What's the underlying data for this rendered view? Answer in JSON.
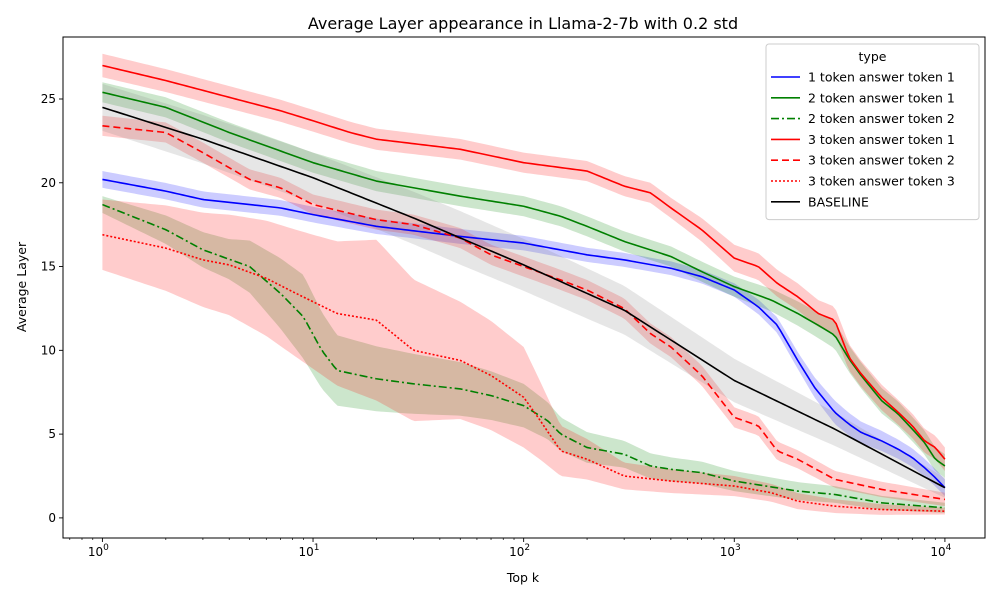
{
  "chart_data": {
    "type": "line",
    "title": "Average Layer appearance in Llama-2-7b with 0.2 std",
    "xlabel": "Top k",
    "ylabel": "Average Layer",
    "xscale": "log",
    "xlim": [
      0.65,
      15500
    ],
    "ylim": [
      -1.2,
      28.7
    ],
    "x_ticks": [
      {
        "value": 1,
        "base": "10",
        "exp": "0"
      },
      {
        "value": 10,
        "base": "10",
        "exp": "1"
      },
      {
        "value": 100,
        "base": "10",
        "exp": "2"
      },
      {
        "value": 1000,
        "base": "10",
        "exp": "3"
      },
      {
        "value": 10000,
        "base": "10",
        "exp": "4"
      }
    ],
    "y_ticks": [
      0,
      5,
      10,
      15,
      20,
      25
    ],
    "legend": {
      "title": "type",
      "position": "top-right"
    },
    "series": [
      {
        "name": "1 token answer token 1",
        "color": "#0000ff",
        "dash": "solid",
        "points": [
          [
            1,
            20.2
          ],
          [
            2,
            19.5
          ],
          [
            3,
            19.0
          ],
          [
            5,
            18.7
          ],
          [
            7,
            18.5
          ],
          [
            10,
            18.1
          ],
          [
            20,
            17.4
          ],
          [
            50,
            16.8
          ],
          [
            100,
            16.4
          ],
          [
            200,
            15.7
          ],
          [
            300,
            15.4
          ],
          [
            500,
            14.9
          ],
          [
            700,
            14.4
          ],
          [
            1000,
            13.6
          ],
          [
            1300,
            12.6
          ],
          [
            1600,
            11.5
          ],
          [
            2000,
            9.4
          ],
          [
            2400,
            7.8
          ],
          [
            3000,
            6.3
          ],
          [
            3500,
            5.6
          ],
          [
            4000,
            5.1
          ],
          [
            5000,
            4.6
          ],
          [
            6000,
            4.1
          ],
          [
            7000,
            3.6
          ],
          [
            8000,
            3.0
          ],
          [
            9000,
            2.4
          ],
          [
            10000,
            1.8
          ]
        ],
        "band": [
          [
            1,
            0.5
          ],
          [
            1000,
            0.4
          ],
          [
            2000,
            0.5
          ],
          [
            2400,
            0.6
          ],
          [
            3000,
            0.7
          ],
          [
            5000,
            0.6
          ],
          [
            10000,
            0.5
          ]
        ]
      },
      {
        "name": "2 token answer token 1",
        "color": "#008000",
        "dash": "solid",
        "points": [
          [
            1,
            25.4
          ],
          [
            2,
            24.5
          ],
          [
            4,
            23.0
          ],
          [
            7,
            21.9
          ],
          [
            10,
            21.2
          ],
          [
            20,
            20.1
          ],
          [
            50,
            19.2
          ],
          [
            100,
            18.6
          ],
          [
            150,
            18.0
          ],
          [
            200,
            17.4
          ],
          [
            300,
            16.5
          ],
          [
            500,
            15.6
          ],
          [
            700,
            14.7
          ],
          [
            1000,
            13.8
          ],
          [
            1500,
            13.0
          ],
          [
            2000,
            12.2
          ],
          [
            2500,
            11.5
          ],
          [
            3000,
            10.9
          ],
          [
            3500,
            9.5
          ],
          [
            4000,
            8.5
          ],
          [
            5000,
            7.0
          ],
          [
            6000,
            6.2
          ],
          [
            7000,
            5.3
          ],
          [
            8000,
            4.5
          ],
          [
            9000,
            3.5
          ],
          [
            10000,
            3.1
          ]
        ],
        "band": [
          [
            1,
            0.6
          ],
          [
            100,
            0.6
          ],
          [
            1000,
            0.6
          ],
          [
            3000,
            0.8
          ],
          [
            10000,
            0.7
          ]
        ]
      },
      {
        "name": "2 token answer token 2",
        "color": "#008000",
        "dash": "8,3,2,3",
        "points": [
          [
            1,
            18.7
          ],
          [
            2,
            17.2
          ],
          [
            3,
            16.0
          ],
          [
            5,
            15.0
          ],
          [
            7,
            13.4
          ],
          [
            9,
            12.0
          ],
          [
            11,
            10.0
          ],
          [
            13,
            8.8
          ],
          [
            20,
            8.3
          ],
          [
            30,
            8.0
          ],
          [
            50,
            7.7
          ],
          [
            70,
            7.3
          ],
          [
            100,
            6.7
          ],
          [
            130,
            5.8
          ],
          [
            150,
            5.0
          ],
          [
            200,
            4.2
          ],
          [
            300,
            3.8
          ],
          [
            400,
            3.1
          ],
          [
            500,
            2.9
          ],
          [
            700,
            2.7
          ],
          [
            1000,
            2.2
          ],
          [
            2000,
            1.6
          ],
          [
            3000,
            1.4
          ],
          [
            5000,
            0.9
          ],
          [
            10000,
            0.6
          ]
        ],
        "band": [
          [
            1,
            0.5
          ],
          [
            4,
            1.2
          ],
          [
            9,
            2.5
          ],
          [
            13,
            2.1
          ],
          [
            50,
            1.6
          ],
          [
            100,
            1.3
          ],
          [
            150,
            1.0
          ],
          [
            300,
            0.8
          ],
          [
            1000,
            0.6
          ],
          [
            3000,
            0.5
          ],
          [
            10000,
            0.3
          ]
        ]
      },
      {
        "name": "3 token answer token 1",
        "color": "#ff0000",
        "dash": "solid",
        "points": [
          [
            1,
            27.0
          ],
          [
            2,
            26.1
          ],
          [
            4,
            25.1
          ],
          [
            7,
            24.3
          ],
          [
            10,
            23.7
          ],
          [
            15,
            23.0
          ],
          [
            20,
            22.6
          ],
          [
            50,
            22.0
          ],
          [
            100,
            21.2
          ],
          [
            200,
            20.7
          ],
          [
            300,
            19.8
          ],
          [
            400,
            19.4
          ],
          [
            500,
            18.5
          ],
          [
            700,
            17.2
          ],
          [
            1000,
            15.5
          ],
          [
            1300,
            15.0
          ],
          [
            1600,
            14.0
          ],
          [
            2000,
            13.2
          ],
          [
            2500,
            12.2
          ],
          [
            3000,
            11.8
          ],
          [
            3500,
            9.6
          ],
          [
            4000,
            8.6
          ],
          [
            5000,
            7.2
          ],
          [
            6000,
            6.3
          ],
          [
            7000,
            5.5
          ],
          [
            8000,
            4.6
          ],
          [
            9000,
            4.2
          ],
          [
            10000,
            3.5
          ]
        ],
        "band": [
          [
            1,
            0.7
          ],
          [
            100,
            0.6
          ],
          [
            500,
            0.6
          ],
          [
            1000,
            0.8
          ],
          [
            3000,
            0.8
          ],
          [
            10000,
            0.7
          ]
        ]
      },
      {
        "name": "3 token answer token 2",
        "color": "#ff0000",
        "dash": "7,4",
        "points": [
          [
            1,
            23.4
          ],
          [
            2,
            23.0
          ],
          [
            3,
            21.8
          ],
          [
            5,
            20.2
          ],
          [
            7,
            19.7
          ],
          [
            10,
            18.7
          ],
          [
            20,
            17.8
          ],
          [
            30,
            17.5
          ],
          [
            50,
            16.7
          ],
          [
            70,
            15.7
          ],
          [
            100,
            15.0
          ],
          [
            150,
            14.2
          ],
          [
            200,
            13.6
          ],
          [
            300,
            12.5
          ],
          [
            400,
            11.0
          ],
          [
            500,
            10.2
          ],
          [
            700,
            8.5
          ],
          [
            1000,
            6.0
          ],
          [
            1300,
            5.5
          ],
          [
            1600,
            4.0
          ],
          [
            2000,
            3.5
          ],
          [
            3000,
            2.3
          ],
          [
            5000,
            1.7
          ],
          [
            10000,
            1.1
          ]
        ],
        "band": [
          [
            1,
            0.6
          ],
          [
            1000,
            0.6
          ],
          [
            10000,
            0.4
          ]
        ]
      },
      {
        "name": "3 token answer token 3",
        "color": "#ff0000",
        "dash": "2,2",
        "points": [
          [
            1,
            16.9
          ],
          [
            2,
            16.1
          ],
          [
            3,
            15.4
          ],
          [
            4,
            15.1
          ],
          [
            6,
            14.3
          ],
          [
            8,
            13.5
          ],
          [
            10,
            12.9
          ],
          [
            13,
            12.2
          ],
          [
            20,
            11.8
          ],
          [
            30,
            10.0
          ],
          [
            50,
            9.4
          ],
          [
            70,
            8.5
          ],
          [
            100,
            7.2
          ],
          [
            120,
            5.8
          ],
          [
            150,
            4.0
          ],
          [
            200,
            3.5
          ],
          [
            300,
            2.5
          ],
          [
            500,
            2.2
          ],
          [
            1000,
            1.9
          ],
          [
            1500,
            1.5
          ],
          [
            2000,
            1.0
          ],
          [
            3000,
            0.7
          ],
          [
            5000,
            0.5
          ],
          [
            10000,
            0.4
          ]
        ],
        "band": [
          [
            1,
            2.1
          ],
          [
            4,
            3.0
          ],
          [
            10,
            4.0
          ],
          [
            20,
            4.8
          ],
          [
            50,
            3.5
          ],
          [
            100,
            3.0
          ],
          [
            150,
            1.5
          ],
          [
            300,
            0.8
          ],
          [
            1000,
            0.6
          ],
          [
            10000,
            0.2
          ]
        ]
      },
      {
        "name": "BASELINE",
        "color": "#000000",
        "dash": "solid",
        "points": [
          [
            1,
            24.5
          ],
          [
            3,
            22.6
          ],
          [
            10,
            20.3
          ],
          [
            30,
            17.9
          ],
          [
            100,
            15.1
          ],
          [
            300,
            12.4
          ],
          [
            1000,
            8.2
          ],
          [
            3000,
            5.3
          ],
          [
            10000,
            1.8
          ]
        ],
        "band": [
          [
            1,
            1.4
          ],
          [
            10,
            1.5
          ],
          [
            50,
            1.6
          ],
          [
            200,
            1.5
          ],
          [
            1000,
            1.3
          ],
          [
            3000,
            1.0
          ],
          [
            10000,
            0.6
          ]
        ],
        "band_color": "#808080"
      }
    ]
  }
}
